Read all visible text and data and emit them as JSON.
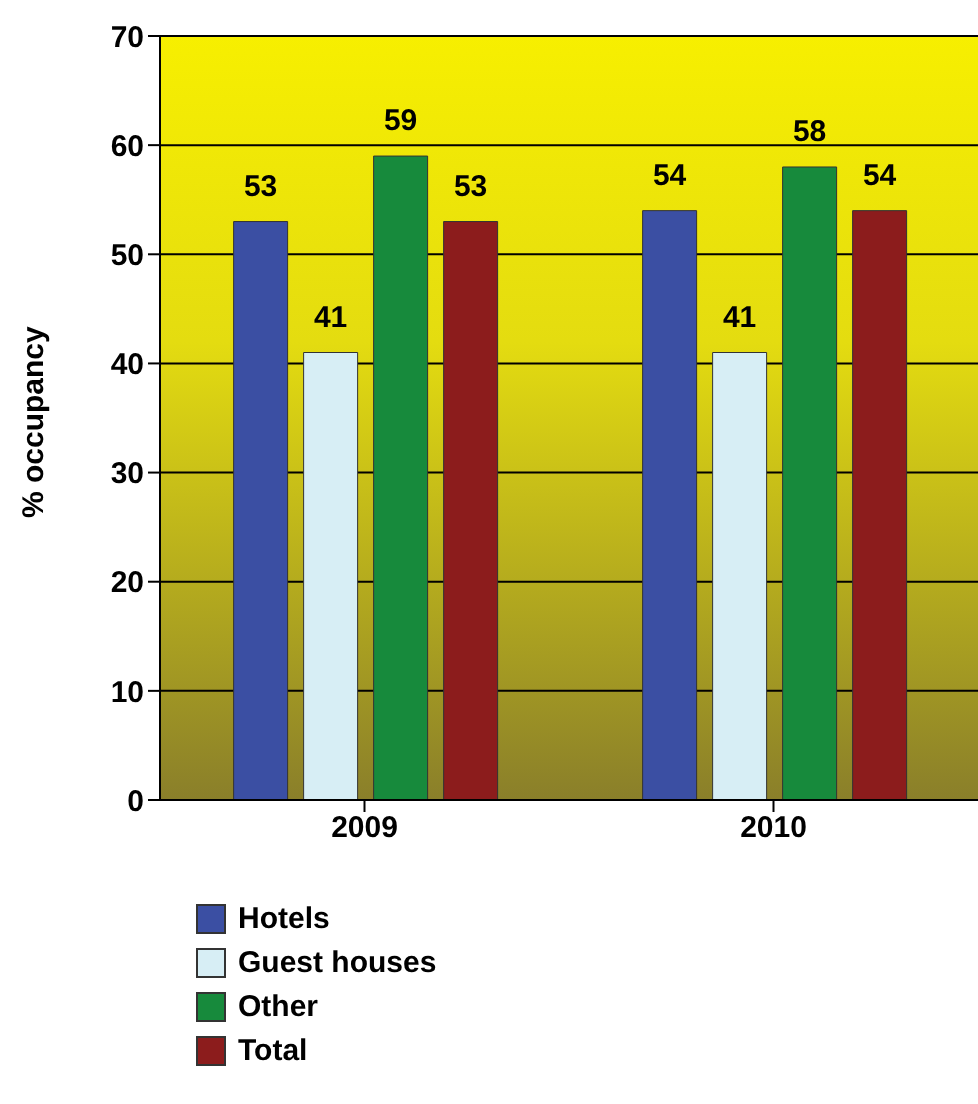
{
  "chart_data": {
    "type": "bar",
    "ylabel": "% occupancy",
    "categories": [
      "2009",
      "2010"
    ],
    "series": [
      {
        "name": "Hotels",
        "color": "#3b4fa3",
        "values": [
          53,
          54
        ]
      },
      {
        "name": "Guest houses",
        "color": "#d7eef5",
        "values": [
          41,
          41
        ]
      },
      {
        "name": "Other",
        "color": "#178a3c",
        "values": [
          59,
          58
        ]
      },
      {
        "name": "Total",
        "color": "#8c1c1c",
        "values": [
          53,
          54
        ]
      }
    ],
    "ylim": [
      0,
      70
    ],
    "yticks": [
      0,
      10,
      20,
      30,
      40,
      50,
      60,
      70
    ],
    "grid": "y",
    "legend": "bottom",
    "data_labels": true
  }
}
